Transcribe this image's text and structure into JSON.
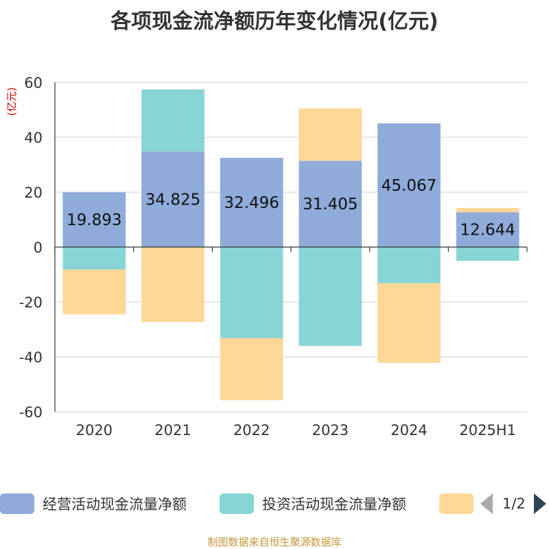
{
  "title": "各项现金流净额历年变化情况(亿元)",
  "source_note": "制图数据来自恒生聚源数据库",
  "chart_data": {
    "type": "bar",
    "stacked": true,
    "title": "各项现金流净额历年变化情况(亿元)",
    "ylabel": "(亿元)",
    "ylim": [
      -60,
      60
    ],
    "yticks": [
      60,
      40,
      20,
      0,
      -20,
      -40,
      -60
    ],
    "grid": true,
    "legend_position": "bottom",
    "categories": [
      "2020",
      "2021",
      "2022",
      "2023",
      "2024",
      "2025H1"
    ],
    "series": [
      {
        "name": "经营活动现金流量净额",
        "color": "#8eabd9",
        "values": [
          19.893,
          34.825,
          32.496,
          31.405,
          45.067,
          12.644
        ]
      },
      {
        "name": "投资活动现金流量净额",
        "color": "#88d5d6",
        "values": [
          -8.2,
          22.6,
          -33.2,
          -36.0,
          -13.2,
          -5.0
        ]
      },
      {
        "name": "",
        "color": "#ffd796",
        "values": [
          -16.3,
          -27.3,
          -22.6,
          19.1,
          -29.0,
          1.6
        ]
      }
    ],
    "data_labels": [
      "19.893",
      "34.825",
      "32.496",
      "31.405",
      "45.067",
      "12.644"
    ]
  },
  "legend": {
    "page_text": "1/2"
  }
}
